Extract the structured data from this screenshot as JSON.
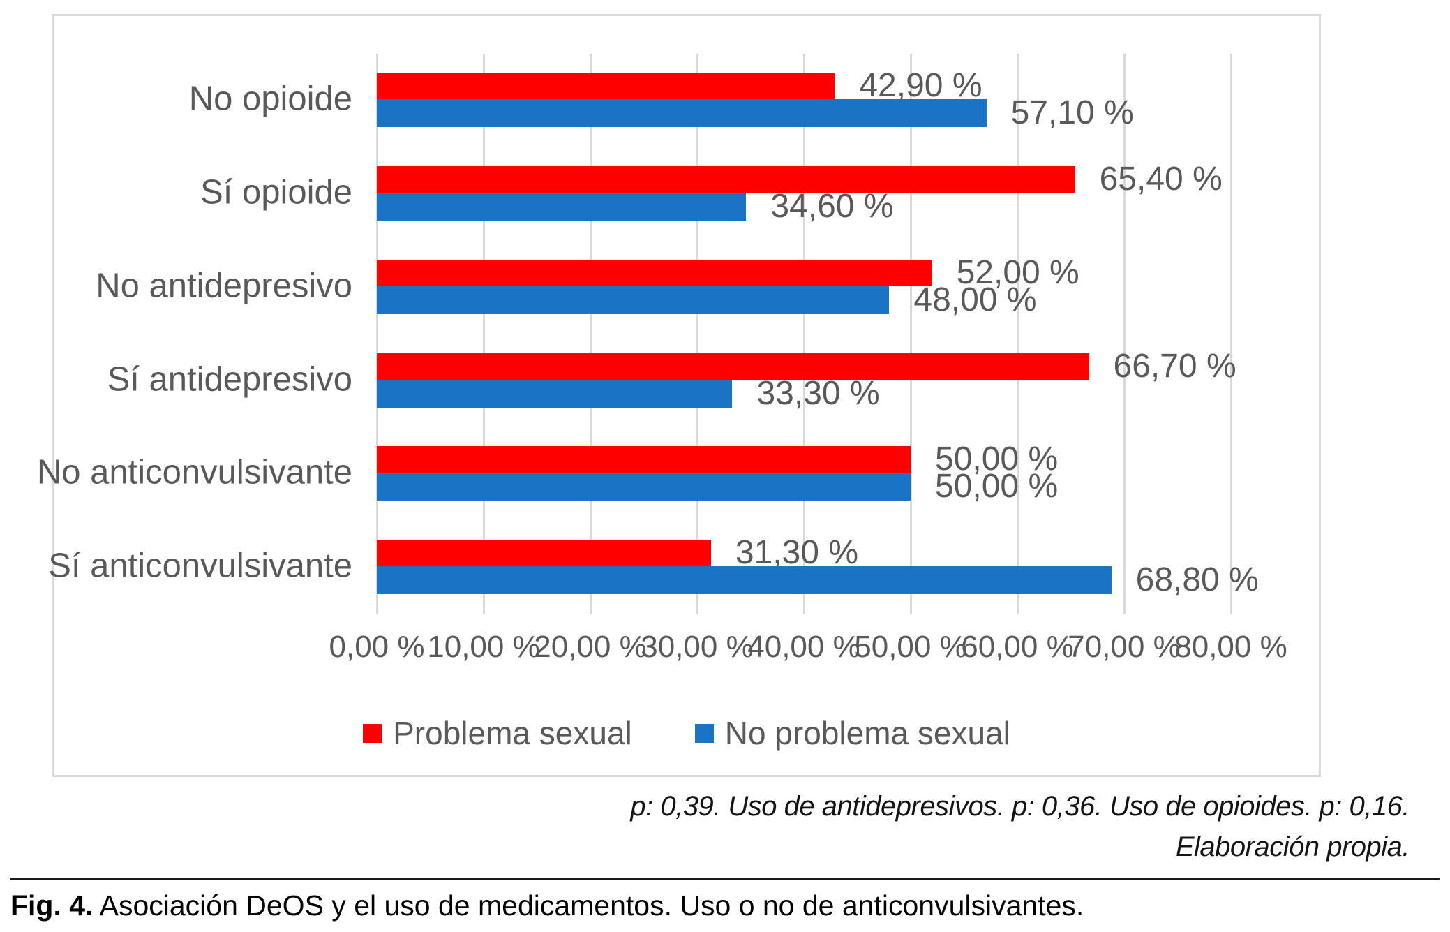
{
  "chart_data": {
    "type": "bar",
    "orientation": "horizontal",
    "title": "",
    "xlabel": "",
    "ylabel": "",
    "xlim": [
      0,
      80
    ],
    "grid": true,
    "legend_position": "bottom",
    "categories": [
      "No opioide",
      "Sí opioide",
      "No antidepresivo",
      "Sí antidepresivo",
      "No anticonvulsivante",
      "Sí anticonvulsivante"
    ],
    "series": [
      {
        "name": "Problema sexual",
        "color": "#ff0000",
        "values": [
          42.9,
          65.4,
          52.0,
          66.7,
          50.0,
          31.3
        ],
        "labels": [
          "42,90 %",
          "65,40 %",
          "52,00 %",
          "66,70 %",
          "50,00 %",
          "31,30 %"
        ]
      },
      {
        "name": "No problema sexual",
        "color": "#1b73c6",
        "values": [
          57.1,
          34.6,
          48.0,
          33.3,
          50.0,
          68.8
        ],
        "labels": [
          "57,10 %",
          "34,60 %",
          "48,00 %",
          "33,30 %",
          "50,00 %",
          "68,80 %"
        ]
      }
    ],
    "x_ticks": [
      "0,00 %",
      "10,00 %",
      "20,00 %",
      "30,00 %",
      "40,00 %",
      "50,00 %",
      "60,00 %",
      "70,00 %",
      "80,00 %"
    ]
  },
  "footer": {
    "line1": "p: 0,39. Uso de antidepresivos. p: 0,36. Uso de opioides. p: 0,16.",
    "line2": "Elaboración propia."
  },
  "caption": {
    "prefix": "Fig. 4.",
    "text": " Asociación DeOS y el uso de medicamentos. Uso o no de anticonvulsivantes."
  },
  "colors": {
    "series_problema_sexual": "#ff0000",
    "series_no_problema_sexual": "#1b73c6",
    "gridline": "#d9d9d9",
    "frame_border": "#d9d9d9",
    "chart_text": "#595959",
    "caption_text": "#000000"
  }
}
